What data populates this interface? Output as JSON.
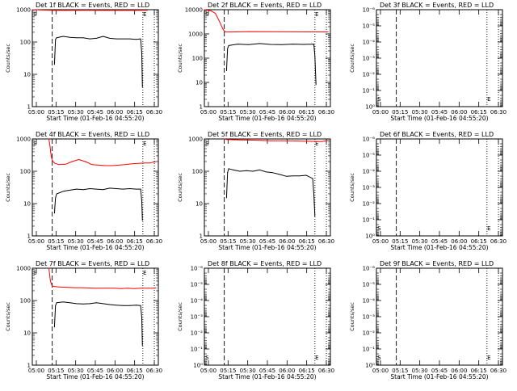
{
  "chart_data": [
    {
      "type": "line",
      "title": "Det 1f BLACK = Events, RED = LLD",
      "xlabel": "Start Time (01-Feb-16 04:55:20)",
      "ylabel": "Counts/sec",
      "yscale": "log",
      "ylim": [
        1,
        1000
      ],
      "yticks": [
        {
          "v": 1,
          "label": "1"
        },
        {
          "v": 10,
          "label": "10"
        },
        {
          "v": 100,
          "label": "100"
        },
        {
          "v": 1000,
          "label": "1000"
        }
      ],
      "xticks": [
        "05:00",
        "05:15",
        "05:30",
        "05:45",
        "06:00",
        "06:15",
        "06:30"
      ],
      "xlim": [
        0,
        5700
      ],
      "markers": {
        "dashed": [
          900
        ],
        "dotted": [
          5000,
          5520
        ],
        "s_label": "S",
        "e_label": "E",
        "s_pos": 40,
        "e_pos": 5010
      },
      "series": [
        {
          "color": "#ff0000",
          "x": [
            0,
            1000,
            1500,
            2500,
            3500,
            4500,
            5000,
            5150,
            5200
          ],
          "y": [
            1000,
            950,
            950,
            960,
            950,
            950,
            960,
            960,
            960
          ]
        },
        {
          "color": "#000000",
          "x": [
            1000,
            1050,
            1100,
            1400,
            1700,
            2000,
            2300,
            2600,
            2900,
            3200,
            3500,
            3800,
            4100,
            4400,
            4700,
            4900,
            4950,
            4980
          ],
          "y": [
            20,
            120,
            135,
            150,
            140,
            135,
            135,
            125,
            130,
            150,
            130,
            125,
            125,
            125,
            120,
            125,
            45,
            4
          ]
        }
      ]
    },
    {
      "type": "line",
      "title": "Det 2f BLACK = Events, RED = LLD",
      "xlabel": "Start Time (01-Feb-16 04:55:20)",
      "ylabel": "Counts/sec",
      "yscale": "log",
      "ylim": [
        1,
        10000
      ],
      "yticks": [
        {
          "v": 1,
          "label": "1"
        },
        {
          "v": 10,
          "label": "10"
        },
        {
          "v": 100,
          "label": "100"
        },
        {
          "v": 1000,
          "label": "1000"
        },
        {
          "v": 10000,
          "label": "10000"
        }
      ],
      "xticks": [
        "05:00",
        "05:15",
        "05:30",
        "05:45",
        "06:00",
        "06:15",
        "06:30"
      ],
      "xlim": [
        0,
        5700
      ],
      "markers": {
        "dashed": [
          900
        ],
        "dotted": [
          5000,
          5520
        ],
        "s_label": "S",
        "e_label": "E",
        "s_pos": 40,
        "e_pos": 5010
      },
      "series": [
        {
          "color": "#ff0000",
          "x": [
            0,
            300,
            500,
            700,
            850,
            950,
            1200,
            2000,
            3000,
            4000,
            5000,
            5600
          ],
          "y": [
            10000,
            9000,
            7000,
            3000,
            1500,
            1200,
            1200,
            1250,
            1230,
            1220,
            1210,
            1200
          ]
        },
        {
          "color": "#000000",
          "x": [
            1000,
            1050,
            1100,
            1500,
            2000,
            2500,
            3000,
            3500,
            4000,
            4500,
            4950,
            5000,
            5050
          ],
          "y": [
            30,
            250,
            330,
            380,
            360,
            400,
            370,
            360,
            380,
            370,
            380,
            120,
            8
          ]
        }
      ]
    },
    {
      "type": "line",
      "title": "Det 3f BLACK = Events, RED = LLD",
      "xlabel": "Start Time (01-Feb-16 04:55:20)",
      "ylabel": "Counts/sec",
      "yscale": "log",
      "ylim": [
        1,
        1e-06
      ],
      "yticks": [
        {
          "v": 1,
          "label": "10⁰"
        },
        {
          "v": 0.1,
          "label": "10⁻¹"
        },
        {
          "v": 0.01,
          "label": "10⁻²"
        },
        {
          "v": 0.001,
          "label": "10⁻³"
        },
        {
          "v": 0.0001,
          "label": "10⁻⁴"
        },
        {
          "v": 1e-05,
          "label": "10⁻⁵"
        },
        {
          "v": 1e-06,
          "label": "10⁻⁶"
        }
      ],
      "xticks": [
        "05:00",
        "05:15",
        "05:30",
        "05:45",
        "06:00",
        "06:15",
        "06:30"
      ],
      "xlim": [
        0,
        5700
      ],
      "markers": {
        "dashed": [
          900
        ],
        "dotted": [
          5000,
          5520
        ],
        "s_label": "S",
        "e_label": "E",
        "s_pos": 40,
        "e_pos": 5010,
        "label_bottom": true
      },
      "series": []
    },
    {
      "type": "line",
      "title": "Det 4f BLACK = Events, RED = LLD",
      "xlabel": "Start Time (01-Feb-16 04:55:20)",
      "ylabel": "Counts/sec",
      "yscale": "log",
      "ylim": [
        1,
        1000
      ],
      "yticks": [
        {
          "v": 1,
          "label": "1"
        },
        {
          "v": 10,
          "label": "10"
        },
        {
          "v": 100,
          "label": "100"
        },
        {
          "v": 1000,
          "label": "1000"
        }
      ],
      "xticks": [
        "05:00",
        "05:15",
        "05:30",
        "05:45",
        "06:00",
        "06:15",
        "06:30"
      ],
      "xlim": [
        0,
        5700
      ],
      "markers": {
        "dashed": [
          900
        ],
        "dotted": [
          5000,
          5520
        ],
        "s_label": "S",
        "e_label": "E",
        "s_pos": 40,
        "e_pos": 5010
      },
      "series": [
        {
          "color": "#ff0000",
          "x": [
            750,
            800,
            850,
            900,
            1000,
            1200,
            1500,
            1800,
            2100,
            2400,
            2700,
            3000,
            3300,
            3600,
            3900,
            4200,
            4500,
            4800,
            5100,
            5300,
            5450,
            5600
          ],
          "y": [
            1000,
            600,
            300,
            220,
            180,
            160,
            165,
            200,
            230,
            200,
            160,
            155,
            150,
            150,
            155,
            160,
            170,
            175,
            180,
            180,
            190,
            200
          ]
        },
        {
          "color": "#000000",
          "x": [
            1000,
            1050,
            1100,
            1400,
            1700,
            2000,
            2300,
            2600,
            2900,
            3200,
            3500,
            3800,
            4100,
            4400,
            4700,
            4900,
            4950,
            4980
          ],
          "y": [
            5,
            15,
            20,
            24,
            26,
            28,
            27,
            29,
            28,
            27,
            30,
            29,
            28,
            29,
            28,
            28,
            12,
            3
          ]
        }
      ]
    },
    {
      "type": "line",
      "title": "Det 5f BLACK = Events, RED = LLD",
      "xlabel": "Start Time (01-Feb-16 04:55:20)",
      "ylabel": "Counts/sec",
      "yscale": "log",
      "ylim": [
        1,
        1000
      ],
      "yticks": [
        {
          "v": 1,
          "label": "1"
        },
        {
          "v": 10,
          "label": "10"
        },
        {
          "v": 100,
          "label": "100"
        },
        {
          "v": 1000,
          "label": "1000"
        }
      ],
      "xticks": [
        "05:00",
        "05:15",
        "05:30",
        "05:45",
        "06:00",
        "06:15",
        "06:30"
      ],
      "xlim": [
        0,
        5700
      ],
      "markers": {
        "dashed": [
          900
        ],
        "dotted": [
          5000,
          5520
        ],
        "s_label": "S",
        "e_label": "E",
        "s_pos": 40,
        "e_pos": 5010
      },
      "series": [
        {
          "color": "#ff0000",
          "x": [
            900,
            1000,
            1500,
            2000,
            2500,
            3000,
            3500,
            4000,
            4500,
            5000,
            5300,
            5600
          ],
          "y": [
            1000,
            960,
            940,
            920,
            900,
            880,
            880,
            870,
            850,
            840,
            830,
            900
          ]
        },
        {
          "color": "#000000",
          "x": [
            1000,
            1050,
            1100,
            1300,
            1600,
            1900,
            2200,
            2500,
            2800,
            3100,
            3400,
            3700,
            4000,
            4300,
            4600,
            4900,
            4950,
            5000
          ],
          "y": [
            15,
            90,
            120,
            110,
            100,
            105,
            100,
            110,
            95,
            90,
            80,
            70,
            72,
            72,
            75,
            60,
            20,
            4
          ]
        }
      ]
    },
    {
      "type": "line",
      "title": "Det 6f BLACK = Events, RED = LLD",
      "xlabel": "Start Time (01-Feb-16 04:55:20)",
      "ylabel": "Counts/sec",
      "yscale": "log",
      "ylim": [
        1,
        1e-06
      ],
      "yticks": [
        {
          "v": 1,
          "label": "10⁰"
        },
        {
          "v": 0.1,
          "label": "10⁻¹"
        },
        {
          "v": 0.01,
          "label": "10⁻²"
        },
        {
          "v": 0.001,
          "label": "10⁻³"
        },
        {
          "v": 0.0001,
          "label": "10⁻⁴"
        },
        {
          "v": 1e-05,
          "label": "10⁻⁵"
        },
        {
          "v": 1e-06,
          "label": "10⁻⁶"
        }
      ],
      "xticks": [
        "05:00",
        "05:15",
        "05:30",
        "05:45",
        "06:00",
        "06:15",
        "06:30"
      ],
      "xlim": [
        0,
        5700
      ],
      "markers": {
        "dashed": [
          900
        ],
        "dotted": [
          5000,
          5520
        ],
        "s_label": "S",
        "e_label": "E",
        "s_pos": 40,
        "e_pos": 5010,
        "label_bottom": true
      },
      "series": []
    },
    {
      "type": "line",
      "title": "Det 7f BLACK = Events, RED = LLD",
      "xlabel": "Start Time (01-Feb-16 04:55:20)",
      "ylabel": "Counts/sec",
      "yscale": "log",
      "ylim": [
        1,
        1000
      ],
      "yticks": [
        {
          "v": 1,
          "label": "1"
        },
        {
          "v": 10,
          "label": "10"
        },
        {
          "v": 100,
          "label": "100"
        },
        {
          "v": 1000,
          "label": "1000"
        }
      ],
      "xticks": [
        "05:00",
        "05:15",
        "05:30",
        "05:45",
        "06:00",
        "06:15",
        "06:30"
      ],
      "xlim": [
        0,
        5700
      ],
      "markers": {
        "dashed": [
          900
        ],
        "dotted": [
          5000,
          5520
        ],
        "s_label": "S",
        "e_label": "E",
        "s_pos": 40,
        "e_pos": 5010
      },
      "series": [
        {
          "color": "#ff0000",
          "x": [
            750,
            820,
            900,
            1000,
            1300,
            1600,
            1900,
            2200,
            2500,
            2800,
            3100,
            3400,
            3700,
            4000,
            4300,
            4600,
            4900,
            5200,
            5500,
            5600
          ],
          "y": [
            1000,
            400,
            280,
            270,
            260,
            255,
            250,
            250,
            245,
            240,
            240,
            240,
            240,
            235,
            240,
            235,
            240,
            240,
            240,
            245
          ]
        },
        {
          "color": "#000000",
          "x": [
            1000,
            1050,
            1100,
            1400,
            1700,
            2000,
            2300,
            2600,
            2900,
            3200,
            3500,
            3800,
            4100,
            4400,
            4700,
            4900,
            4950,
            4980
          ],
          "y": [
            15,
            70,
            85,
            90,
            85,
            80,
            78,
            80,
            85,
            80,
            75,
            72,
            70,
            70,
            72,
            70,
            30,
            4
          ]
        }
      ]
    },
    {
      "type": "line",
      "title": "Det 8f BLACK = Events, RED = LLD",
      "xlabel": "Start Time (01-Feb-16 04:55:20)",
      "ylabel": "Counts/sec",
      "yscale": "log",
      "ylim": [
        1,
        1e-06
      ],
      "yticks": [
        {
          "v": 1,
          "label": "10⁰"
        },
        {
          "v": 0.1,
          "label": "10⁻¹"
        },
        {
          "v": 0.01,
          "label": "10⁻²"
        },
        {
          "v": 0.001,
          "label": "10⁻³"
        },
        {
          "v": 0.0001,
          "label": "10⁻⁴"
        },
        {
          "v": 1e-05,
          "label": "10⁻⁵"
        },
        {
          "v": 1e-06,
          "label": "10⁻⁶"
        }
      ],
      "xticks": [
        "05:00",
        "05:15",
        "05:30",
        "05:45",
        "06:00",
        "06:15",
        "06:30"
      ],
      "xlim": [
        0,
        5700
      ],
      "markers": {
        "dashed": [
          900
        ],
        "dotted": [
          5000,
          5520
        ],
        "s_label": "S",
        "e_label": "E",
        "s_pos": 40,
        "e_pos": 5010,
        "label_bottom": true
      },
      "series": []
    },
    {
      "type": "line",
      "title": "Det 9f BLACK = Events, RED = LLD",
      "xlabel": "Start Time (01-Feb-16 04:55:20)",
      "ylabel": "Counts/sec",
      "yscale": "log",
      "ylim": [
        1,
        1e-06
      ],
      "yticks": [
        {
          "v": 1,
          "label": "10⁰"
        },
        {
          "v": 0.1,
          "label": "10⁻¹"
        },
        {
          "v": 0.01,
          "label": "10⁻²"
        },
        {
          "v": 0.001,
          "label": "10⁻³"
        },
        {
          "v": 0.0001,
          "label": "10⁻⁴"
        },
        {
          "v": 1e-05,
          "label": "10⁻⁵"
        },
        {
          "v": 1e-06,
          "label": "10⁻⁶"
        }
      ],
      "xticks": [
        "05:00",
        "05:15",
        "05:30",
        "05:45",
        "06:00",
        "06:15",
        "06:30"
      ],
      "xlim": [
        0,
        5700
      ],
      "markers": {
        "dashed": [
          900
        ],
        "dotted": [
          5000,
          5520
        ],
        "s_label": "S",
        "e_label": "E",
        "s_pos": 40,
        "e_pos": 5010,
        "label_bottom": true
      },
      "series": []
    }
  ]
}
